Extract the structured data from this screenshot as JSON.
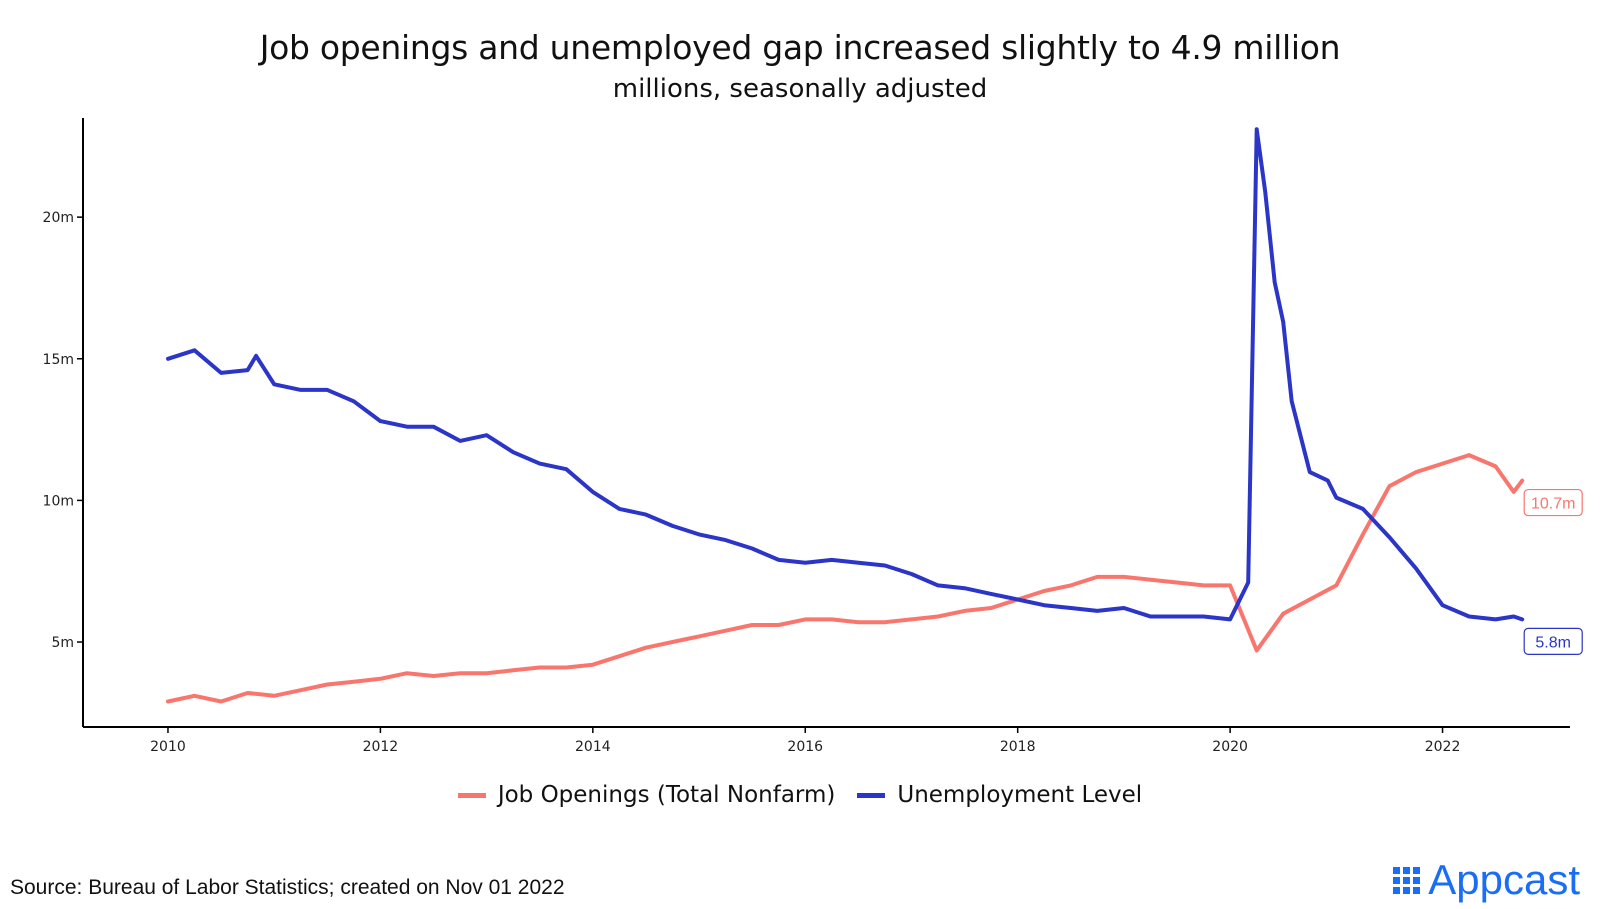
{
  "title": "Job openings and unemployed gap increased slightly to 4.9 million",
  "subtitle": "millions, seasonally adjusted",
  "source": "Source: Bureau of Labor Statistics; created on Nov 01 2022",
  "logo": {
    "text": "Appcast",
    "icon": "appcast-logo-icon",
    "color": "#1a6ef5"
  },
  "chart_data": {
    "type": "line",
    "xlabel": "",
    "ylabel": "",
    "xlim": [
      2009.2,
      2023.2
    ],
    "ylim": [
      2.0,
      23.5
    ],
    "x_ticks": [
      2010,
      2012,
      2014,
      2016,
      2018,
      2020,
      2022
    ],
    "x_tick_labels": [
      "2010",
      "2012",
      "2014",
      "2016",
      "2018",
      "2020",
      "2022"
    ],
    "y_ticks": [
      5,
      10,
      15,
      20
    ],
    "y_tick_labels": [
      "5m",
      "10m",
      "15m",
      "20m"
    ],
    "grid": false,
    "legend_position": "bottom",
    "series": [
      {
        "name": "Job Openings (Total Nonfarm)",
        "color": "#f8766d",
        "end_label": "10.7m",
        "points": [
          [
            2010.0,
            2.9
          ],
          [
            2010.25,
            3.1
          ],
          [
            2010.5,
            2.9
          ],
          [
            2010.75,
            3.2
          ],
          [
            2011.0,
            3.1
          ],
          [
            2011.25,
            3.3
          ],
          [
            2011.5,
            3.5
          ],
          [
            2011.75,
            3.6
          ],
          [
            2012.0,
            3.7
          ],
          [
            2012.25,
            3.9
          ],
          [
            2012.5,
            3.8
          ],
          [
            2012.75,
            3.9
          ],
          [
            2013.0,
            3.9
          ],
          [
            2013.25,
            4.0
          ],
          [
            2013.5,
            4.1
          ],
          [
            2013.75,
            4.1
          ],
          [
            2014.0,
            4.2
          ],
          [
            2014.25,
            4.5
          ],
          [
            2014.5,
            4.8
          ],
          [
            2014.75,
            5.0
          ],
          [
            2015.0,
            5.2
          ],
          [
            2015.25,
            5.4
          ],
          [
            2015.5,
            5.6
          ],
          [
            2015.75,
            5.6
          ],
          [
            2016.0,
            5.8
          ],
          [
            2016.25,
            5.8
          ],
          [
            2016.5,
            5.7
          ],
          [
            2016.75,
            5.7
          ],
          [
            2017.0,
            5.8
          ],
          [
            2017.25,
            5.9
          ],
          [
            2017.5,
            6.1
          ],
          [
            2017.75,
            6.2
          ],
          [
            2018.0,
            6.5
          ],
          [
            2018.25,
            6.8
          ],
          [
            2018.5,
            7.0
          ],
          [
            2018.75,
            7.3
          ],
          [
            2019.0,
            7.3
          ],
          [
            2019.25,
            7.2
          ],
          [
            2019.5,
            7.1
          ],
          [
            2019.75,
            7.0
          ],
          [
            2020.0,
            7.0
          ],
          [
            2020.25,
            4.7
          ],
          [
            2020.5,
            6.0
          ],
          [
            2020.75,
            6.5
          ],
          [
            2021.0,
            7.0
          ],
          [
            2021.25,
            8.8
          ],
          [
            2021.5,
            10.5
          ],
          [
            2021.75,
            11.0
          ],
          [
            2022.0,
            11.3
          ],
          [
            2022.25,
            11.6
          ],
          [
            2022.5,
            11.2
          ],
          [
            2022.67,
            10.3
          ],
          [
            2022.75,
            10.7
          ]
        ]
      },
      {
        "name": "Unemployment Level",
        "color": "#2b35c7",
        "end_label": "5.8m",
        "points": [
          [
            2010.0,
            15.0
          ],
          [
            2010.25,
            15.3
          ],
          [
            2010.5,
            14.5
          ],
          [
            2010.75,
            14.6
          ],
          [
            2010.83,
            15.1
          ],
          [
            2011.0,
            14.1
          ],
          [
            2011.25,
            13.9
          ],
          [
            2011.5,
            13.9
          ],
          [
            2011.75,
            13.5
          ],
          [
            2012.0,
            12.8
          ],
          [
            2012.25,
            12.6
          ],
          [
            2012.5,
            12.6
          ],
          [
            2012.75,
            12.1
          ],
          [
            2013.0,
            12.3
          ],
          [
            2013.25,
            11.7
          ],
          [
            2013.5,
            11.3
          ],
          [
            2013.75,
            11.1
          ],
          [
            2014.0,
            10.3
          ],
          [
            2014.25,
            9.7
          ],
          [
            2014.5,
            9.5
          ],
          [
            2014.75,
            9.1
          ],
          [
            2015.0,
            8.8
          ],
          [
            2015.25,
            8.6
          ],
          [
            2015.5,
            8.3
          ],
          [
            2015.75,
            7.9
          ],
          [
            2016.0,
            7.8
          ],
          [
            2016.25,
            7.9
          ],
          [
            2016.5,
            7.8
          ],
          [
            2016.75,
            7.7
          ],
          [
            2017.0,
            7.4
          ],
          [
            2017.25,
            7.0
          ],
          [
            2017.5,
            6.9
          ],
          [
            2017.75,
            6.7
          ],
          [
            2018.0,
            6.5
          ],
          [
            2018.25,
            6.3
          ],
          [
            2018.5,
            6.2
          ],
          [
            2018.75,
            6.1
          ],
          [
            2019.0,
            6.2
          ],
          [
            2019.25,
            5.9
          ],
          [
            2019.5,
            5.9
          ],
          [
            2019.75,
            5.9
          ],
          [
            2020.0,
            5.8
          ],
          [
            2020.17,
            7.1
          ],
          [
            2020.25,
            23.1
          ],
          [
            2020.33,
            20.9
          ],
          [
            2020.42,
            17.7
          ],
          [
            2020.5,
            16.3
          ],
          [
            2020.58,
            13.5
          ],
          [
            2020.75,
            11.0
          ],
          [
            2020.92,
            10.7
          ],
          [
            2021.0,
            10.1
          ],
          [
            2021.25,
            9.7
          ],
          [
            2021.5,
            8.7
          ],
          [
            2021.75,
            7.6
          ],
          [
            2022.0,
            6.3
          ],
          [
            2022.25,
            5.9
          ],
          [
            2022.5,
            5.8
          ],
          [
            2022.67,
            5.9
          ],
          [
            2022.75,
            5.8
          ]
        ]
      }
    ]
  }
}
